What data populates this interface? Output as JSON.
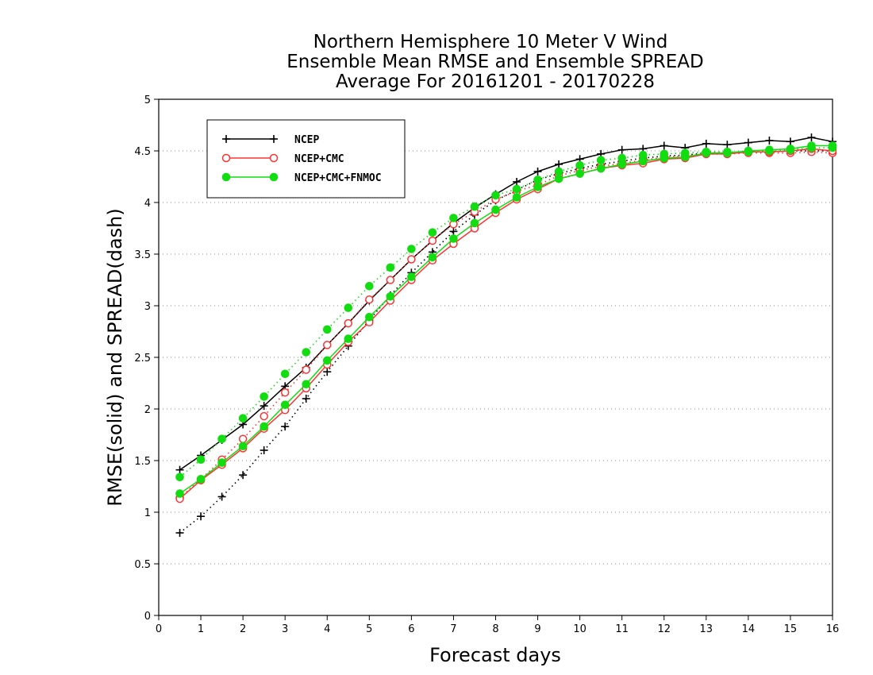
{
  "chart_data": {
    "type": "line",
    "title_lines": [
      "Northern Hemisphere 10 Meter V Wind",
      "Ensemble Mean RMSE and Ensemble SPREAD",
      "Average For 20161201 - 20170228"
    ],
    "xlabel": "Forecast days",
    "ylabel": "RMSE(solid) and SPREAD(dash)",
    "xlim": [
      0,
      16
    ],
    "ylim": [
      0,
      5
    ],
    "x_ticks": [
      "0",
      "1",
      "2",
      "3",
      "4",
      "5",
      "6",
      "7",
      "8",
      "9",
      "10",
      "11",
      "12",
      "13",
      "14",
      "15",
      "16"
    ],
    "y_ticks": [
      "0",
      "0.5",
      "1",
      "1.5",
      "2",
      "2.5",
      "3",
      "3.5",
      "4",
      "4.5",
      "5"
    ],
    "grid": "horizontal dotted",
    "legend_position": "top-left",
    "x": [
      0.5,
      1,
      1.5,
      2,
      2.5,
      3,
      3.5,
      4,
      4.5,
      5,
      5.5,
      6,
      6.5,
      7,
      7.5,
      8,
      8.5,
      9,
      9.5,
      10,
      10.5,
      11,
      11.5,
      12,
      12.5,
      13,
      13.5,
      14,
      14.5,
      15,
      15.5,
      16
    ],
    "series": [
      {
        "name": "NCEP",
        "color": "#000000",
        "marker": "plus",
        "rmse": [
          1.41,
          1.55,
          1.7,
          1.85,
          2.03,
          2.22,
          2.4,
          2.62,
          2.83,
          3.05,
          3.25,
          3.45,
          3.63,
          3.8,
          3.95,
          4.08,
          4.2,
          4.3,
          4.37,
          4.42,
          4.47,
          4.51,
          4.52,
          4.55,
          4.53,
          4.57,
          4.56,
          4.58,
          4.6,
          4.59,
          4.63,
          4.59
        ],
        "spread": [
          0.8,
          0.96,
          1.15,
          1.36,
          1.6,
          1.83,
          2.1,
          2.36,
          2.61,
          2.86,
          3.1,
          3.32,
          3.52,
          3.72,
          3.88,
          4.02,
          4.12,
          4.22,
          4.28,
          4.33,
          4.37,
          4.4,
          4.43,
          4.45,
          4.46,
          4.48,
          4.48,
          4.49,
          4.49,
          4.5,
          4.5,
          4.5
        ]
      },
      {
        "name": "NCEP+CMC",
        "color": "#ff3333",
        "marker": "open-circle",
        "rmse": [
          1.13,
          1.31,
          1.46,
          1.62,
          1.81,
          1.99,
          2.2,
          2.43,
          2.65,
          2.84,
          3.05,
          3.25,
          3.44,
          3.6,
          3.75,
          3.9,
          4.03,
          4.13,
          4.23,
          4.28,
          4.33,
          4.36,
          4.38,
          4.42,
          4.43,
          4.47,
          4.47,
          4.49,
          4.49,
          4.5,
          4.52,
          4.5
        ],
        "spread": [
          1.14,
          1.32,
          1.51,
          1.71,
          1.93,
          2.16,
          2.38,
          2.62,
          2.83,
          3.06,
          3.25,
          3.45,
          3.63,
          3.79,
          3.91,
          4.03,
          4.11,
          4.17,
          4.26,
          4.31,
          4.35,
          4.38,
          4.41,
          4.44,
          4.45,
          4.47,
          4.47,
          4.48,
          4.48,
          4.48,
          4.49,
          4.48
        ]
      },
      {
        "name": "NCEP+CMC+FNMOC",
        "color": "#11dd11",
        "marker": "filled-circle",
        "rmse": [
          1.18,
          1.32,
          1.48,
          1.64,
          1.83,
          2.04,
          2.24,
          2.47,
          2.68,
          2.89,
          3.09,
          3.28,
          3.47,
          3.65,
          3.8,
          3.93,
          4.05,
          4.15,
          4.23,
          4.28,
          4.33,
          4.37,
          4.4,
          4.43,
          4.44,
          4.48,
          4.48,
          4.5,
          4.51,
          4.52,
          4.55,
          4.55
        ],
        "spread": [
          1.34,
          1.51,
          1.71,
          1.91,
          2.12,
          2.34,
          2.55,
          2.77,
          2.98,
          3.19,
          3.37,
          3.55,
          3.71,
          3.85,
          3.96,
          4.07,
          4.13,
          4.22,
          4.3,
          4.36,
          4.41,
          4.43,
          4.46,
          4.47,
          4.48,
          4.49,
          4.49,
          4.49,
          4.5,
          4.51,
          4.53,
          4.53
        ]
      }
    ]
  }
}
